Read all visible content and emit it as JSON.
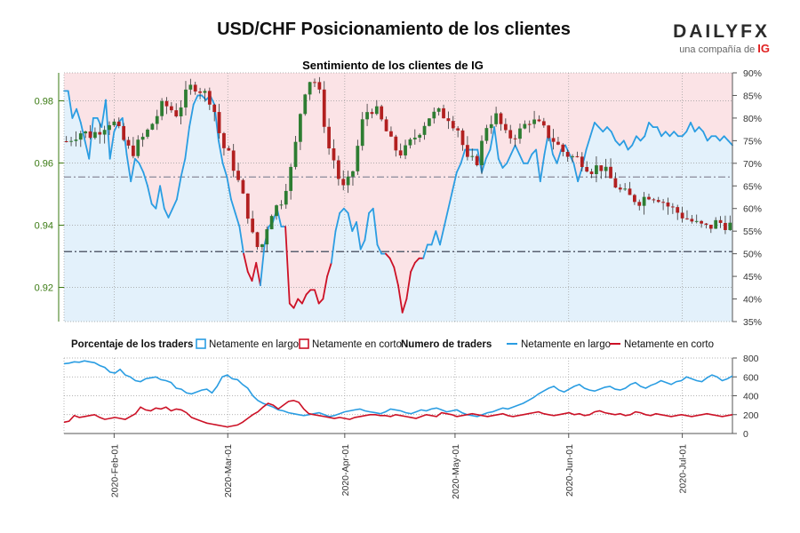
{
  "title": "USD/CHF Posicionamiento de los clientes",
  "logo": {
    "brand": "DAILYFX",
    "tagline": "una compañía de",
    "tag_brand": "IG"
  },
  "colors": {
    "long": "#2a9de2",
    "short": "#cc1126",
    "up": "#2e7d32",
    "down": "#b22020",
    "long_zone": "#e3f1fb",
    "short_zone": "#fbe3e6"
  },
  "chart_data": [
    {
      "type": "candlestick",
      "title": "Sentimiento de los clientes de IG",
      "ylim": [
        0.909,
        0.989
      ],
      "yticks": [
        "0.92",
        "0.94",
        "0.96",
        "0.98"
      ],
      "y2lim": [
        35,
        90
      ],
      "y2ticks": [
        "35%",
        "40%",
        "45%",
        "50%",
        "55%",
        "60%",
        "65%",
        "70%",
        "75%",
        "80%",
        "85%",
        "90%"
      ],
      "reference_lines": [
        0.9555,
        0.9315
      ],
      "price_close_anchors": [
        [
          0,
          0.967
        ],
        [
          4,
          0.97
        ],
        [
          8,
          0.969
        ],
        [
          14,
          0.974
        ],
        [
          20,
          0.963
        ],
        [
          25,
          0.97
        ],
        [
          30,
          0.979
        ],
        [
          34,
          0.976
        ],
        [
          38,
          0.984
        ],
        [
          40,
          0.985
        ],
        [
          45,
          0.98
        ],
        [
          48,
          0.966
        ],
        [
          51,
          0.961
        ],
        [
          56,
          0.944
        ],
        [
          58,
          0.934
        ],
        [
          60,
          0.932
        ],
        [
          63,
          0.944
        ],
        [
          66,
          0.947
        ],
        [
          70,
          0.96
        ],
        [
          72,
          0.975
        ],
        [
          74,
          0.985
        ],
        [
          76,
          0.988
        ],
        [
          78,
          0.983
        ],
        [
          81,
          0.965
        ],
        [
          83,
          0.96
        ],
        [
          85,
          0.951
        ],
        [
          88,
          0.955
        ],
        [
          92,
          0.976
        ],
        [
          95,
          0.978
        ],
        [
          98,
          0.972
        ],
        [
          101,
          0.965
        ],
        [
          104,
          0.963
        ],
        [
          108,
          0.969
        ],
        [
          112,
          0.975
        ],
        [
          115,
          0.976
        ],
        [
          118,
          0.975
        ],
        [
          121,
          0.971
        ],
        [
          124,
          0.96
        ],
        [
          127,
          0.961
        ],
        [
          130,
          0.973
        ],
        [
          133,
          0.975
        ],
        [
          136,
          0.968
        ],
        [
          140,
          0.97
        ],
        [
          143,
          0.974
        ],
        [
          146,
          0.972
        ],
        [
          150,
          0.968
        ],
        [
          153,
          0.964
        ],
        [
          156,
          0.962
        ],
        [
          159,
          0.961
        ],
        [
          162,
          0.958
        ],
        [
          165,
          0.959
        ],
        [
          168,
          0.955
        ],
        [
          171,
          0.951
        ],
        [
          174,
          0.949
        ],
        [
          177,
          0.948
        ],
        [
          180,
          0.95
        ],
        [
          183,
          0.949
        ],
        [
          186,
          0.946
        ],
        [
          189,
          0.944
        ],
        [
          192,
          0.942
        ],
        [
          195,
          0.94
        ],
        [
          198,
          0.939
        ],
        [
          201,
          0.941
        ],
        [
          205,
          0.94
        ]
      ],
      "sentiment_long_pct_anchors": [
        [
          0,
          86
        ],
        [
          5,
          86
        ],
        [
          7,
          80
        ],
        [
          9,
          82
        ],
        [
          11,
          79
        ],
        [
          14,
          75
        ],
        [
          16,
          71
        ],
        [
          18,
          80
        ],
        [
          20,
          80
        ],
        [
          22,
          78
        ],
        [
          24,
          84
        ],
        [
          26,
          71
        ],
        [
          28,
          77
        ],
        [
          30,
          79
        ],
        [
          32,
          80
        ],
        [
          34,
          72
        ],
        [
          36,
          66
        ],
        [
          39,
          71
        ],
        [
          41,
          70
        ],
        [
          43,
          68
        ],
        [
          45,
          65
        ],
        [
          47,
          61
        ],
        [
          50,
          60
        ],
        [
          52,
          65
        ],
        [
          54,
          60
        ],
        [
          56,
          58
        ],
        [
          58,
          60
        ],
        [
          60,
          62
        ],
        [
          62,
          67
        ],
        [
          64,
          71
        ],
        [
          66,
          78
        ],
        [
          68,
          83
        ],
        [
          70,
          85
        ],
        [
          73,
          85
        ],
        [
          76,
          84
        ],
        [
          78,
          85
        ],
        [
          80,
          83
        ],
        [
          82,
          75
        ],
        [
          84,
          70
        ],
        [
          86,
          67
        ],
        [
          88,
          62
        ],
        [
          90,
          59
        ],
        [
          92,
          56
        ],
        [
          94,
          50
        ],
        [
          96,
          46
        ],
        [
          97,
          44
        ],
        [
          99,
          48
        ],
        [
          101,
          43
        ],
        [
          103,
          52
        ],
        [
          106,
          56
        ],
        [
          108,
          57
        ],
        [
          111,
          60
        ],
        [
          113,
          56
        ],
        [
          114,
          56
        ],
        [
          116,
          39
        ],
        [
          118,
          38
        ],
        [
          120,
          40
        ],
        [
          122,
          39
        ],
        [
          125,
          41
        ],
        [
          127,
          42
        ],
        [
          129,
          42
        ],
        [
          131,
          39
        ],
        [
          133,
          40
        ],
        [
          135,
          45
        ],
        [
          137,
          48
        ],
        [
          139,
          55
        ],
        [
          141,
          59
        ],
        [
          143,
          60
        ],
        [
          145,
          59
        ],
        [
          147,
          55
        ],
        [
          150,
          57
        ],
        [
          152,
          51
        ],
        [
          154,
          53
        ],
        [
          156,
          59
        ],
        [
          158,
          60
        ],
        [
          160,
          52
        ],
        [
          162,
          50
        ],
        [
          164,
          50
        ],
        [
          166,
          49
        ],
        [
          168,
          47
        ],
        [
          170,
          43
        ],
        [
          172,
          37
        ],
        [
          174,
          40
        ],
        [
          176,
          46
        ],
        [
          178,
          48
        ],
        [
          180,
          49
        ],
        [
          182,
          49
        ],
        [
          184,
          52
        ],
        [
          186,
          52
        ],
        [
          188,
          55
        ],
        [
          190,
          52
        ],
        [
          192,
          56
        ],
        [
          194,
          60
        ],
        [
          196,
          64
        ],
        [
          198,
          68
        ],
        [
          200,
          70
        ],
        [
          202,
          73
        ],
        [
          204,
          73
        ],
        [
          206,
          73
        ],
        [
          208,
          73
        ],
        [
          210,
          68
        ],
        [
          212,
          71
        ],
        [
          214,
          73
        ],
        [
          216,
          78
        ],
        [
          218,
          71
        ],
        [
          220,
          69
        ],
        [
          222,
          70
        ],
        [
          224,
          72
        ],
        [
          226,
          74
        ],
        [
          228,
          72
        ],
        [
          230,
          70
        ],
        [
          232,
          70
        ],
        [
          235,
          72
        ],
        [
          237,
          73
        ],
        [
          239,
          66
        ],
        [
          241,
          72
        ],
        [
          243,
          77
        ],
        [
          245,
          72
        ],
        [
          247,
          70
        ],
        [
          249,
          73
        ],
        [
          251,
          74
        ],
        [
          253,
          72
        ],
        [
          255,
          70
        ],
        [
          257,
          66
        ],
        [
          259,
          69
        ],
        [
          261,
          73
        ],
        [
          263,
          76
        ],
        [
          265,
          79
        ],
        [
          267,
          78
        ],
        [
          269,
          77
        ],
        [
          271,
          78
        ],
        [
          273,
          77
        ],
        [
          275,
          75
        ],
        [
          277,
          74
        ],
        [
          279,
          75
        ],
        [
          281,
          73
        ],
        [
          283,
          74
        ],
        [
          285,
          76
        ],
        [
          287,
          75
        ],
        [
          289,
          76
        ],
        [
          291,
          79
        ],
        [
          293,
          78
        ],
        [
          295,
          78
        ],
        [
          297,
          76
        ],
        [
          299,
          77
        ],
        [
          301,
          76
        ],
        [
          303,
          77
        ],
        [
          305,
          76
        ],
        [
          307,
          76
        ],
        [
          309,
          77
        ],
        [
          311,
          79
        ],
        [
          313,
          77
        ],
        [
          315,
          78
        ],
        [
          317,
          77
        ],
        [
          319,
          75
        ],
        [
          321,
          76
        ],
        [
          323,
          76
        ],
        [
          325,
          75
        ],
        [
          327,
          76
        ],
        [
          329,
          75
        ],
        [
          331,
          74
        ]
      ],
      "x_dates_index_note": "price and sentiment anchors share x index; months labels below",
      "sentiment_long_pct": [
        86,
        86,
        80,
        82,
        79,
        75,
        71,
        80,
        80,
        78,
        84,
        71,
        77,
        79,
        80,
        72,
        66,
        71,
        70,
        68,
        65,
        61,
        60,
        65,
        60,
        58,
        60,
        62,
        67,
        71,
        78,
        83,
        85,
        85,
        84,
        85,
        83,
        75,
        70,
        67,
        62,
        59,
        56,
        50,
        46,
        44,
        48,
        43,
        52,
        56,
        57,
        60,
        56,
        56,
        39,
        38,
        40,
        39,
        41,
        42,
        42,
        39,
        40,
        45,
        48,
        55,
        59,
        60,
        59,
        55,
        57,
        51,
        53,
        59,
        60,
        52,
        50,
        50,
        49,
        47,
        43,
        37,
        40,
        46,
        48,
        49,
        49,
        52,
        52,
        55,
        52,
        56,
        60,
        64,
        68,
        70,
        73,
        73,
        73,
        73,
        68,
        71,
        73,
        78,
        71,
        69,
        70,
        72,
        74,
        72,
        70,
        70,
        72,
        73,
        66,
        72,
        77,
        72,
        70,
        73,
        74,
        72,
        70,
        66,
        69,
        73,
        76,
        79,
        78,
        77,
        78,
        77,
        75,
        74,
        75,
        73,
        74,
        76,
        75,
        76,
        79,
        78,
        78,
        76,
        77,
        76,
        77,
        76,
        76,
        77,
        79,
        77,
        78,
        77,
        75,
        76,
        76,
        75,
        76,
        75,
        74
      ]
    },
    {
      "type": "line",
      "title": "Numero de traders",
      "ylim": [
        0,
        800
      ],
      "yticks": [
        "0",
        "200",
        "400",
        "600",
        "800"
      ],
      "series": [
        {
          "name": "Netamente en largo",
          "values": [
            740,
            745,
            760,
            755,
            770,
            760,
            750,
            720,
            700,
            650,
            640,
            680,
            620,
            600,
            560,
            550,
            580,
            590,
            600,
            570,
            560,
            540,
            480,
            470,
            430,
            420,
            440,
            460,
            470,
            430,
            500,
            600,
            620,
            580,
            570,
            520,
            480,
            400,
            350,
            320,
            300,
            280,
            250,
            240,
            220,
            210,
            200,
            190,
            200,
            210,
            220,
            200,
            180,
            190,
            210,
            230,
            240,
            250,
            260,
            240,
            230,
            220,
            210,
            230,
            260,
            250,
            240,
            220,
            210,
            230,
            250,
            240,
            260,
            270,
            250,
            230,
            240,
            250,
            220,
            200,
            190,
            180,
            200,
            220,
            230,
            250,
            270,
            260,
            280,
            300,
            320,
            350,
            380,
            420,
            450,
            480,
            500,
            460,
            440,
            470,
            500,
            520,
            480,
            460,
            450,
            470,
            490,
            500,
            470,
            460,
            480,
            520,
            540,
            500,
            480,
            510,
            530,
            560,
            540,
            520,
            550,
            560,
            600,
            580,
            560,
            550,
            590,
            620,
            600,
            560,
            580,
            610
          ]
        },
        {
          "name": "Netamente en corto",
          "values": [
            120,
            130,
            190,
            170,
            180,
            190,
            200,
            170,
            150,
            160,
            170,
            160,
            150,
            180,
            210,
            280,
            250,
            240,
            270,
            260,
            280,
            240,
            260,
            250,
            220,
            170,
            150,
            130,
            110,
            100,
            90,
            80,
            70,
            80,
            90,
            120,
            160,
            200,
            230,
            280,
            320,
            300,
            260,
            300,
            340,
            350,
            330,
            260,
            210,
            200,
            190,
            180,
            170,
            160,
            170,
            160,
            150,
            170,
            180,
            190,
            200,
            200,
            190,
            190,
            180,
            200,
            190,
            180,
            170,
            160,
            180,
            200,
            190,
            180,
            220,
            210,
            200,
            180,
            190,
            200,
            210,
            200,
            190,
            180,
            190,
            200,
            210,
            190,
            180,
            190,
            200,
            210,
            220,
            230,
            210,
            200,
            190,
            200,
            210,
            220,
            200,
            210,
            190,
            200,
            230,
            240,
            220,
            210,
            200,
            210,
            190,
            200,
            230,
            220,
            200,
            190,
            210,
            200,
            190,
            180,
            190,
            200,
            190,
            180,
            190,
            200,
            210,
            200,
            190,
            180,
            190,
            200
          ]
        }
      ]
    }
  ],
  "x_labels": [
    "2020-Feb-01",
    "2020-Mar-01",
    "2020-Apr-01",
    "2020-May-01",
    "2020-Jun-01",
    "2020-Jul-01"
  ],
  "legend": {
    "pct_title": "Porcentaje de los traders",
    "pct_long": "Netamente en largo",
    "pct_short": "Netamente en corto",
    "num_title": "Numero de traders",
    "num_long": "Netamente en largo",
    "num_short": "Netamente en corto"
  }
}
